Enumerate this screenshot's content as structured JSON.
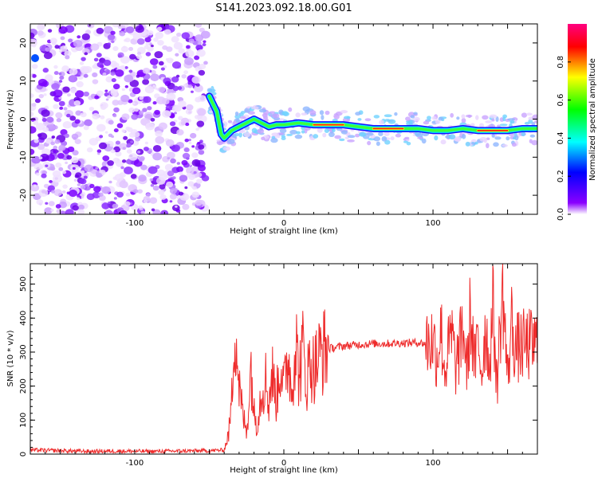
{
  "title": "S141.2023.092.18.00.G01",
  "chart_data": [
    {
      "type": "heatmap",
      "xlabel": "Height of straight line (km)",
      "ylabel": "Frequency (Hz)",
      "xlim": [
        -170,
        170
      ],
      "ylim": [
        -25,
        25
      ],
      "xticks": [
        -100,
        0,
        100
      ],
      "yticks": [
        -20,
        -10,
        0,
        10,
        20
      ],
      "colorbar": {
        "label": "Normalized spectral amplitude",
        "range": [
          0,
          1
        ],
        "ticks": [
          "0.0",
          "0.2",
          "0.4",
          "0.6",
          "0.8"
        ],
        "colors": [
          "#ffffff",
          "#8a00ff",
          "#0000ff",
          "#00ffff",
          "#00ff00",
          "#ffff00",
          "#ff0000",
          "#ff0080"
        ]
      },
      "noise_region_x": [
        -170,
        -52
      ],
      "signal_trace": {
        "x": [
          -50,
          -45,
          -42,
          -40,
          -35,
          -30,
          -25,
          -20,
          -15,
          -10,
          -5,
          0,
          10,
          20,
          30,
          40,
          50,
          60,
          70,
          80,
          90,
          100,
          110,
          120,
          130,
          140,
          150,
          160,
          170
        ],
        "y": [
          6,
          2,
          -4,
          -5,
          -3,
          -2,
          -1,
          0,
          -1,
          -2,
          -1.5,
          -1.5,
          -1,
          -1.5,
          -1.5,
          -1.5,
          -2,
          -2.5,
          -2.5,
          -2.5,
          -2.5,
          -3,
          -3,
          -2.5,
          -3,
          -3,
          -3,
          -2.5,
          -2.5
        ]
      }
    },
    {
      "type": "line",
      "xlabel": "Height of straight line (km)",
      "ylabel": "SNR (10 * v/v)",
      "xlim": [
        -170,
        170
      ],
      "ylim": [
        0,
        560
      ],
      "xticks": [
        -100,
        0,
        100
      ],
      "yticks": [
        0,
        100,
        200,
        300,
        400,
        500
      ],
      "color": "#ee2b2b",
      "series": [
        {
          "x": [
            -170,
            -150,
            -130,
            -110,
            -90,
            -70,
            -50,
            -40,
            -37,
            -35,
            -33,
            -30,
            -28,
            -25,
            -22,
            -20,
            -18,
            -15,
            -12,
            -10,
            -8,
            -5,
            -2,
            0,
            3,
            5,
            8,
            10,
            13,
            15,
            18,
            20,
            25,
            30,
            40,
            50,
            60,
            70,
            80,
            90,
            95,
            100,
            103,
            105,
            108,
            110,
            113,
            115,
            118,
            120,
            123,
            125,
            128,
            130,
            133,
            135,
            138,
            140,
            143,
            145,
            147,
            150,
            153,
            155,
            160,
            170
          ],
          "y": [
            12,
            10,
            8,
            9,
            8,
            9,
            10,
            12,
            60,
            150,
            410,
            200,
            130,
            60,
            260,
            120,
            90,
            190,
            220,
            150,
            240,
            160,
            280,
            190,
            300,
            180,
            340,
            230,
            310,
            210,
            280,
            250,
            300,
            310,
            318,
            322,
            325,
            325,
            327,
            328,
            325,
            335,
            280,
            380,
            240,
            300,
            350,
            250,
            310,
            380,
            240,
            420,
            260,
            330,
            240,
            380,
            260,
            440,
            200,
            380,
            470,
            220,
            400,
            310,
            318,
            322
          ]
        }
      ]
    }
  ]
}
